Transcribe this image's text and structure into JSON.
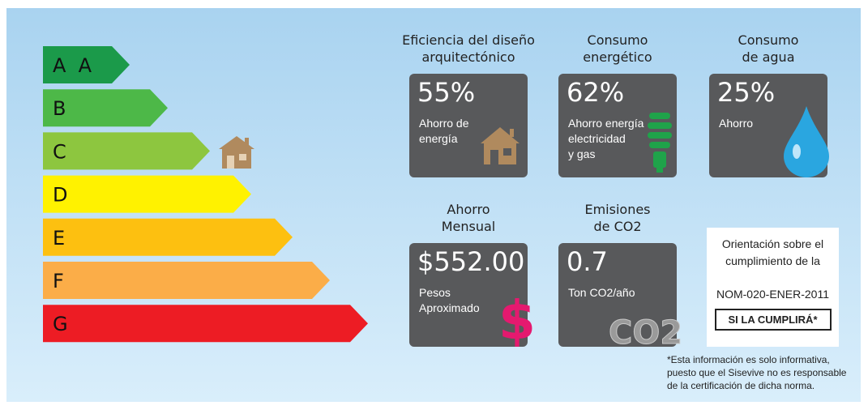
{
  "ratings": [
    {
      "label": "A  A",
      "color": "#1b9a4a"
    },
    {
      "label": "B",
      "color": "#4db848"
    },
    {
      "label": "C",
      "color": "#8dc63f"
    },
    {
      "label": "D",
      "color": "#fff200"
    },
    {
      "label": "E",
      "color": "#fdc010"
    },
    {
      "label": "F",
      "color": "#fbad48"
    },
    {
      "label": "G",
      "color": "#ed1c24"
    }
  ],
  "cards": [
    {
      "title": [
        "Eficiencia del diseño",
        "arquitectónico"
      ],
      "value": "55%",
      "caption": [
        "Ahorro de",
        "energía"
      ]
    },
    {
      "title": [
        "Consumo",
        "energético"
      ],
      "value": "62%",
      "caption": [
        "Ahorro energía",
        "electricidad",
        "y gas"
      ]
    },
    {
      "title": [
        "Consumo",
        "de agua"
      ],
      "value": "25%",
      "caption": [
        "Ahorro"
      ]
    },
    {
      "title": [
        "Ahorro",
        "Mensual"
      ],
      "value": "$552.00",
      "caption": [
        "Pesos",
        "Aproximado"
      ],
      "icon_text": "$"
    },
    {
      "title": [
        "Emisiones",
        "de CO2"
      ],
      "value": "0.7",
      "caption": [
        "Ton CO2/año"
      ],
      "icon_text": "CO2"
    }
  ],
  "note": {
    "lines": [
      "Orientación sobre el",
      "cumplimiento de la"
    ],
    "norm": "NOM-020-ENER-2011",
    "verdict": "SI LA CUMPLIRÁ*",
    "footnote": [
      "*Esta información es solo informativa,",
      "puesto que el Sisevive no es responsable",
      "de la certificación de dicha norma."
    ]
  }
}
